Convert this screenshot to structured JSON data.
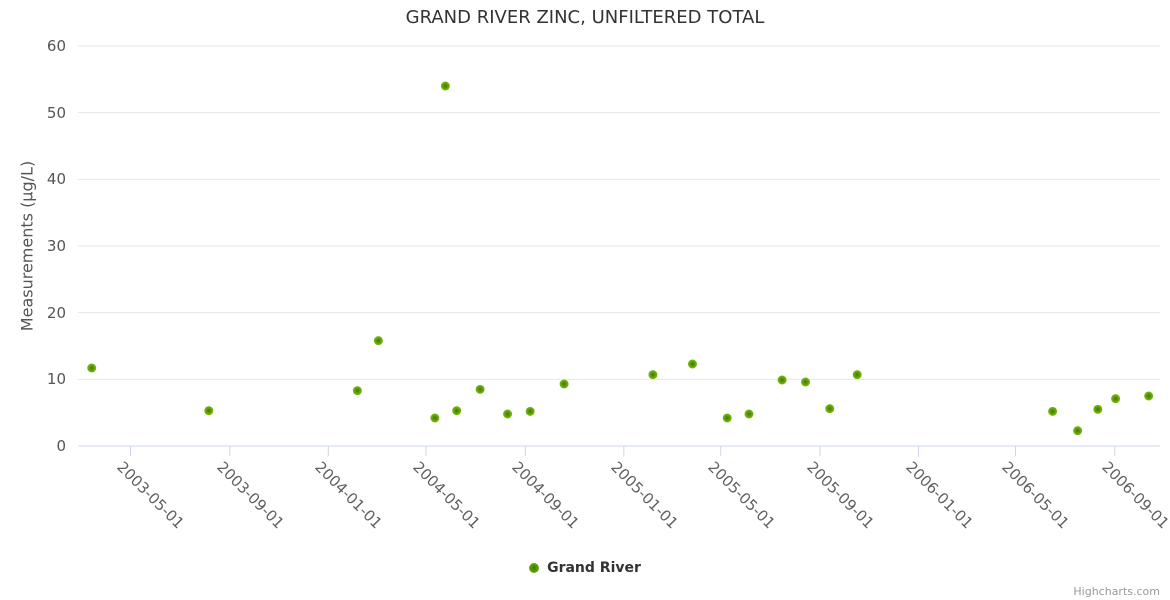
{
  "chart": {
    "title": "GRAND RIVER ZINC, UNFILTERED TOTAL",
    "y_axis_title": "Measurements (µg/L)",
    "legend_label": "Grand River",
    "credits": "Highcharts.com",
    "colors": {
      "title": "#333333",
      "axis_line": "#ccd6eb",
      "grid": "#e6e6e6",
      "tick_label": "#606060",
      "point_edge": "#7cbb12",
      "point_mid": "#60a006",
      "point_center": "#3e7404",
      "credits": "#999999"
    }
  },
  "chart_data": {
    "type": "scatter",
    "title": "GRAND RIVER ZINC, UNFILTERED TOTAL",
    "xlabel": "",
    "ylabel": "Measurements (µg/L)",
    "ylim": [
      0,
      60
    ],
    "yticks": [
      0,
      10,
      20,
      30,
      40,
      50,
      60
    ],
    "x_range": [
      "2003-02-25",
      "2006-10-27"
    ],
    "xticks": [
      "2003-05-01",
      "2003-09-01",
      "2004-01-01",
      "2004-05-01",
      "2004-09-01",
      "2005-01-01",
      "2005-05-01",
      "2005-09-01",
      "2006-01-01",
      "2006-05-01",
      "2006-09-01"
    ],
    "grid": true,
    "legend_position": "bottom-center",
    "series": [
      {
        "name": "Grand River",
        "color": "#60a006",
        "points": [
          {
            "x": "2003-03-14",
            "y": 11.7
          },
          {
            "x": "2003-08-06",
            "y": 5.3
          },
          {
            "x": "2004-02-06",
            "y": 8.3
          },
          {
            "x": "2004-03-03",
            "y": 15.8
          },
          {
            "x": "2004-05-12",
            "y": 4.2
          },
          {
            "x": "2004-05-25",
            "y": 54
          },
          {
            "x": "2004-06-08",
            "y": 5.3
          },
          {
            "x": "2004-07-07",
            "y": 8.5
          },
          {
            "x": "2004-08-10",
            "y": 4.8
          },
          {
            "x": "2004-09-07",
            "y": 5.2
          },
          {
            "x": "2004-10-19",
            "y": 9.3
          },
          {
            "x": "2005-02-06",
            "y": 10.7
          },
          {
            "x": "2005-03-27",
            "y": 12.3
          },
          {
            "x": "2005-05-09",
            "y": 4.2
          },
          {
            "x": "2005-06-05",
            "y": 4.8
          },
          {
            "x": "2005-07-16",
            "y": 9.9
          },
          {
            "x": "2005-08-14",
            "y": 9.6
          },
          {
            "x": "2005-09-13",
            "y": 5.6
          },
          {
            "x": "2005-10-17",
            "y": 10.7
          },
          {
            "x": "2006-06-16",
            "y": 5.2
          },
          {
            "x": "2006-07-17",
            "y": 2.3
          },
          {
            "x": "2006-08-11",
            "y": 5.5
          },
          {
            "x": "2006-09-02",
            "y": 7.1
          },
          {
            "x": "2006-10-13",
            "y": 7.5
          }
        ]
      }
    ]
  }
}
